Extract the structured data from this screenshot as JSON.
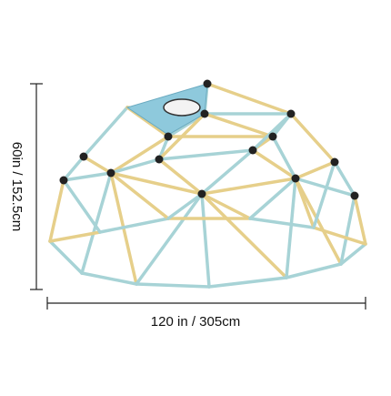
{
  "dimensions": {
    "height": "60in / 152.5cm",
    "width": "120 in / 305cm"
  }
}
